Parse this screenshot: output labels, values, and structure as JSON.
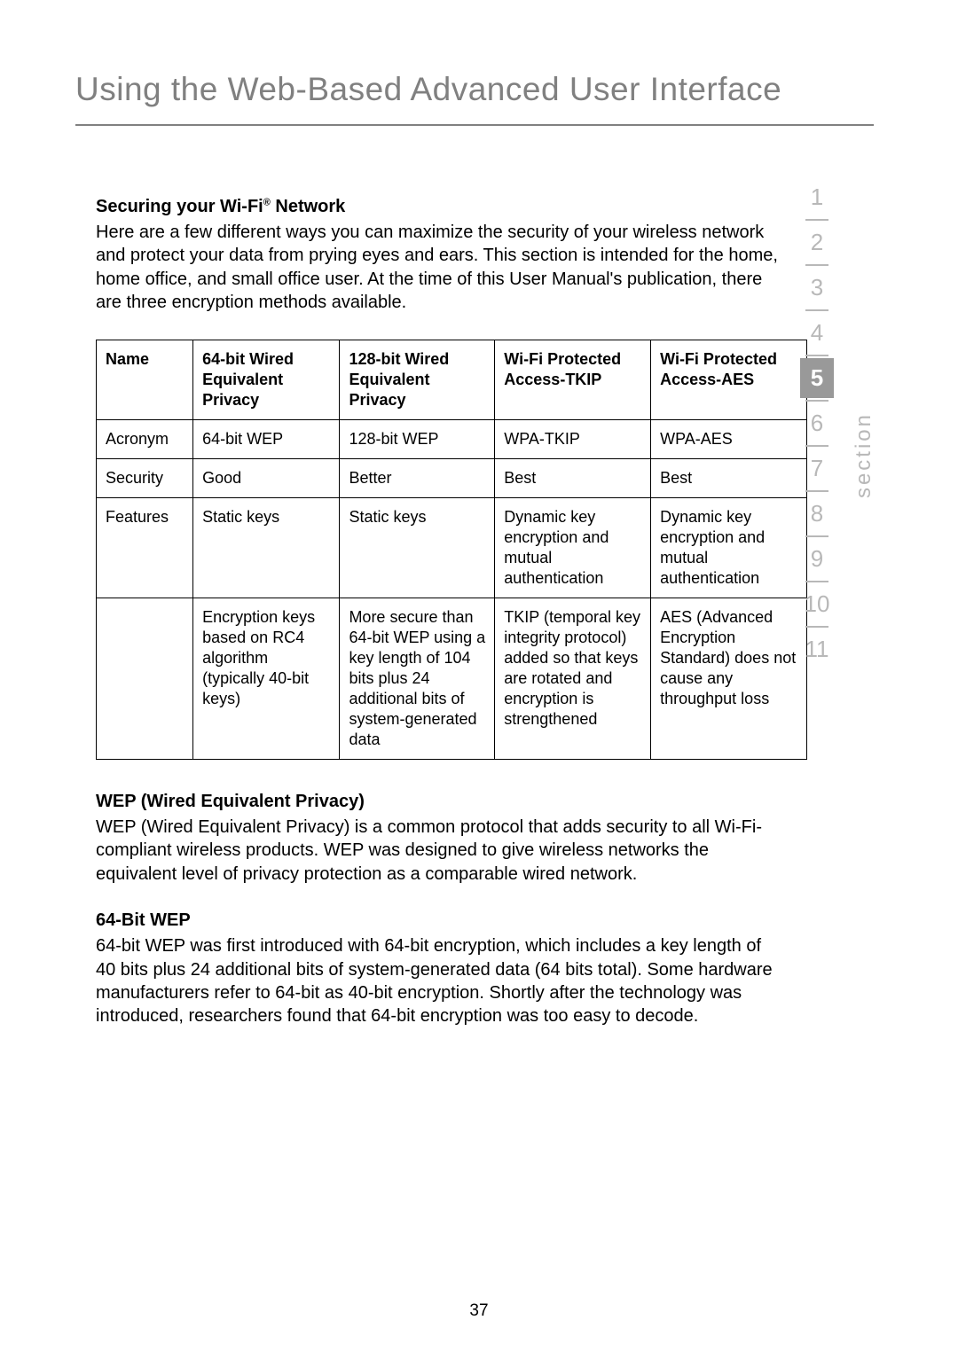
{
  "page_title": "Using the Web-Based Advanced User Interface",
  "section_label": "section",
  "page_number": "37",
  "nav": {
    "items": [
      "1",
      "2",
      "3",
      "4",
      "5",
      "6",
      "7",
      "8",
      "9",
      "10",
      "11"
    ],
    "active_index": 4,
    "inactive_color": "#b8b8b8",
    "active_bg": "#999999",
    "active_fg": "#ffffff"
  },
  "sections": {
    "intro": {
      "heading_pre": "Securing your Wi-Fi",
      "heading_sup": "®",
      "heading_post": " Network",
      "body": "Here are a few different ways you can maximize the security of your wireless network and protect your data from prying eyes and ears. This section is intended for the home, home office, and small office user. At the time of this User Manual's publication, there are three encryption methods available."
    },
    "wep": {
      "heading": "WEP (Wired Equivalent Privacy)",
      "body": "WEP (Wired Equivalent Privacy) is a common protocol that adds security to all Wi-Fi-compliant wireless products. WEP was designed to give wireless networks the equivalent level of privacy protection as a comparable wired network."
    },
    "wep64": {
      "heading": "64-Bit WEP",
      "body": "64-bit WEP was first introduced with 64-bit encryption, which includes a key length of 40 bits plus 24 additional bits of system-generated data (64 bits total). Some hardware manufacturers refer to 64-bit as 40-bit encryption. Shortly after the technology was introduced, researchers found that 64-bit encryption was too easy to decode."
    }
  },
  "table": {
    "headers": [
      "Name",
      "64-bit Wired Equivalent Privacy",
      "128-bit Wired Equivalent Privacy",
      "Wi-Fi Protected Access-TKIP",
      "Wi-Fi Protected Access-AES"
    ],
    "rows": [
      [
        "Acronym",
        "64-bit WEP",
        "128-bit WEP",
        "WPA-TKIP",
        "WPA-AES"
      ],
      [
        "Security",
        "Good",
        "Better",
        "Best",
        "Best"
      ],
      [
        "Features",
        "Static keys",
        "Static keys",
        "Dynamic key encryption and mutual authentication",
        "Dynamic key encryption and mutual authentication"
      ],
      [
        "",
        "Encryption keys based on RC4 algorithm (typically 40-bit keys)",
        "More secure than 64-bit WEP using a key length of 104 bits plus 24 additional bits of system-generated data",
        "TKIP (temporal key integrity protocol) added so that keys are rotated and encryption is strengthened",
        "AES (Advanced Encryption Standard) does not cause any throughput loss"
      ]
    ],
    "border_color": "#000000",
    "font_size": 18
  },
  "colors": {
    "title_color": "#808080",
    "text_color": "#000000",
    "background": "#ffffff"
  }
}
